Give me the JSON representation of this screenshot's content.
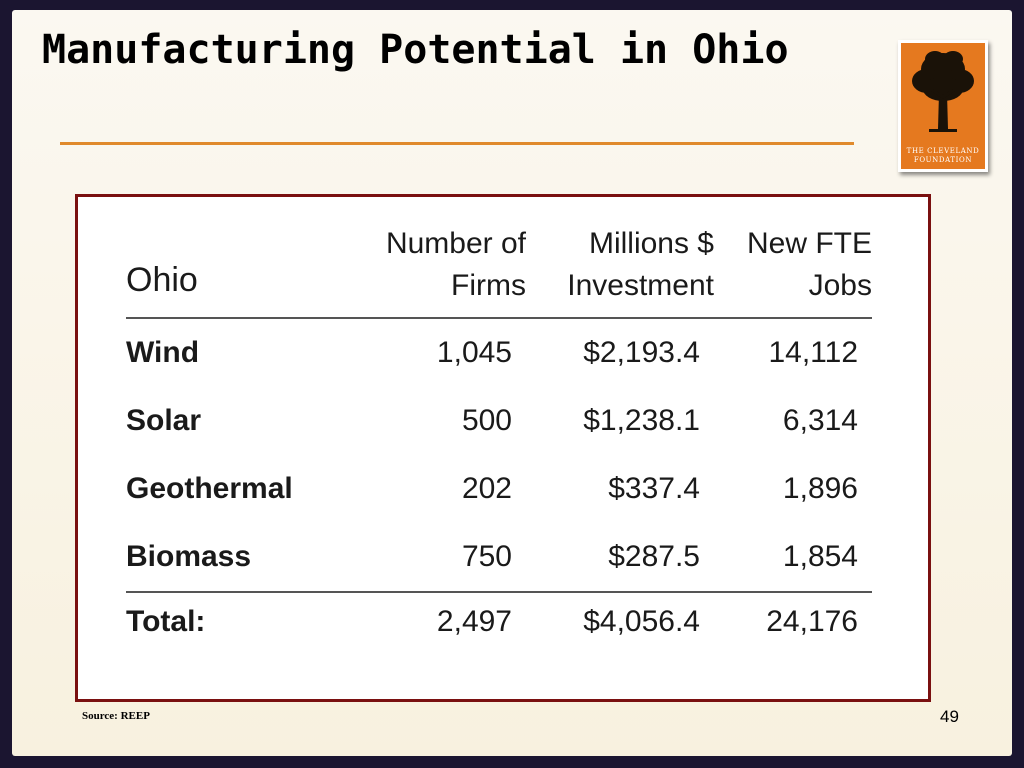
{
  "slide": {
    "title": "Manufacturing Potential in Ohio",
    "source": "Source: REEP",
    "page_number": "49"
  },
  "logo": {
    "line1": "THE CLEVELAND",
    "line2": "FOUNDATION"
  },
  "table": {
    "header": {
      "region": "Ohio",
      "firms": "Number of Firms",
      "investment": "Millions $ Investment",
      "jobs": "New FTE Jobs"
    },
    "rows": [
      {
        "label": "Wind",
        "firms": "1,045",
        "investment": "$2,193.4",
        "jobs": "14,112"
      },
      {
        "label": "Solar",
        "firms": "500",
        "investment": "$1,238.1",
        "jobs": "6,314"
      },
      {
        "label": "Geothermal",
        "firms": "202",
        "investment": "$337.4",
        "jobs": "1,896"
      },
      {
        "label": "Biomass",
        "firms": "750",
        "investment": "$287.5",
        "jobs": "1,854"
      }
    ],
    "total": {
      "label": "Total:",
      "firms": "2,497",
      "investment": "$4,056.4",
      "jobs": "24,176"
    }
  },
  "colors": {
    "title_rule": "#e08a2c",
    "table_border": "#7a1010",
    "logo_background": "#e5791f"
  }
}
